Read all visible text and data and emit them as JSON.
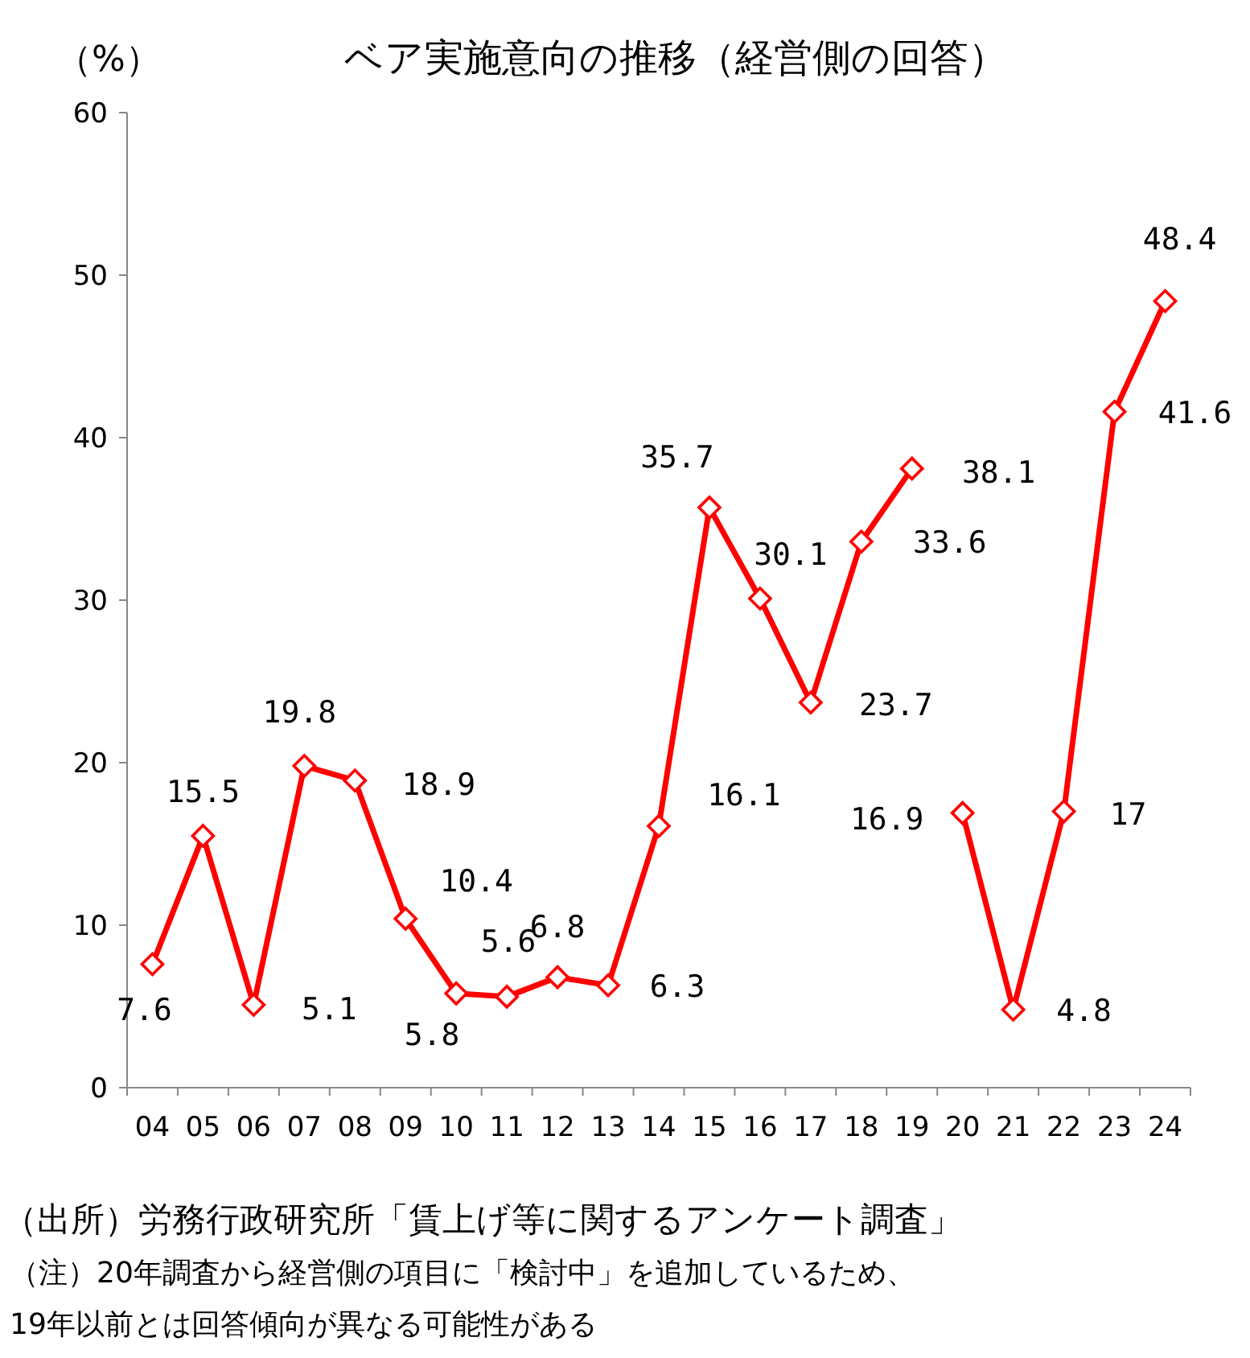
{
  "chart_data": {
    "type": "line",
    "title": "ベア実施意向の推移（経営側の回答）",
    "ylabel": "（%）",
    "categories": [
      "04",
      "05",
      "06",
      "07",
      "08",
      "09",
      "10",
      "11",
      "12",
      "13",
      "14",
      "15",
      "16",
      "17",
      "18",
      "19",
      "20",
      "21",
      "22",
      "23",
      "24"
    ],
    "series": [
      {
        "color": "#ff0000",
        "values": [
          7.6,
          15.5,
          5.1,
          19.8,
          18.9,
          10.4,
          5.8,
          5.6,
          6.8,
          6.3,
          16.1,
          35.7,
          30.1,
          23.7,
          33.6,
          38.1,
          null,
          null,
          null,
          null,
          null
        ]
      },
      {
        "color": "#ff0000",
        "values": [
          null,
          null,
          null,
          null,
          null,
          null,
          null,
          null,
          null,
          null,
          null,
          null,
          null,
          null,
          null,
          null,
          16.9,
          4.8,
          17,
          41.6,
          48.4
        ]
      }
    ],
    "ylim": [
      0,
      60
    ],
    "yticks": [
      0,
      10,
      20,
      30,
      40,
      50,
      60
    ],
    "grid": false,
    "marker": "diamond",
    "line_style": "solid",
    "data_labels": true,
    "annotations": [
      "（出所）労務行政研究所「賃上げ等に関するアンケート調査」",
      "（注）20年調査から経営側の項目に「検討中」を追加しているため、",
      "19年以前とは回答傾向が異なる可能性がある"
    ]
  }
}
